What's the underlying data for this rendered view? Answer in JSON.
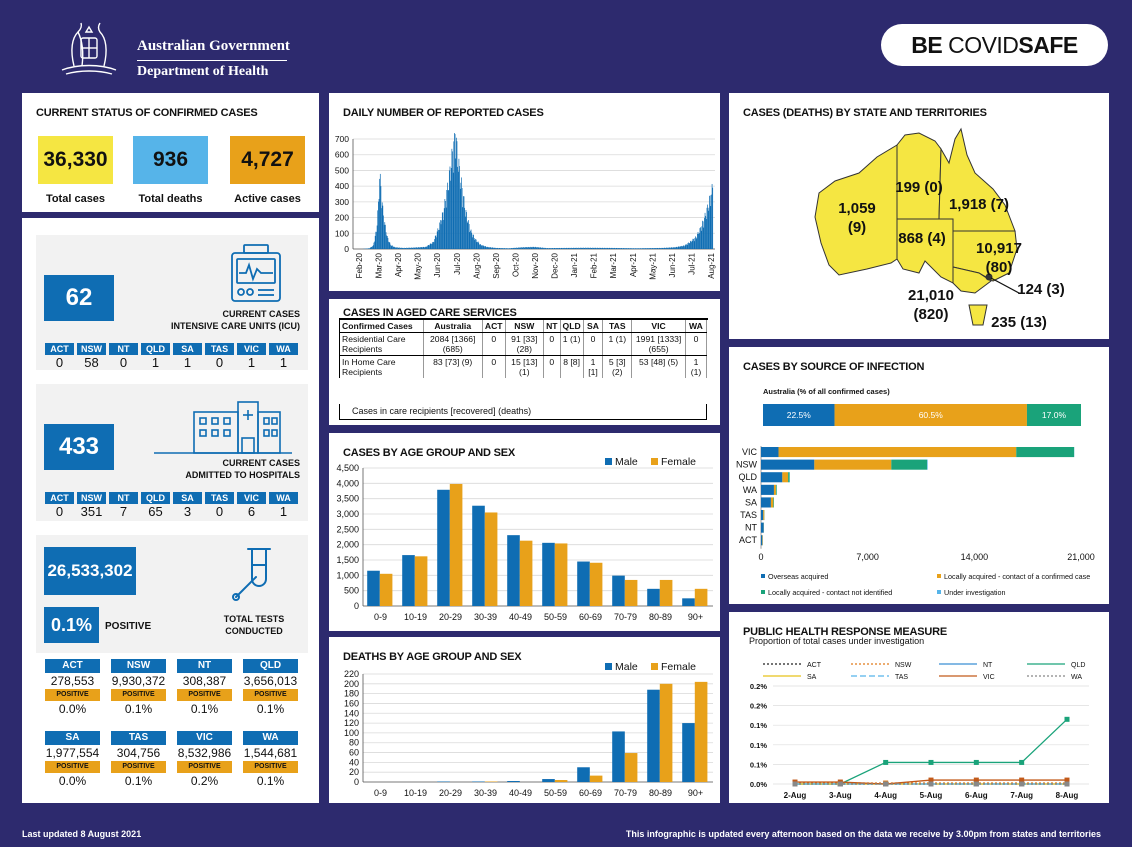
{
  "header": {
    "gov_line1": "Australian Government",
    "gov_line2": "Department of Health",
    "brand_be": "BE ",
    "brand_covid": "COVID",
    "brand_safe": "SAFE"
  },
  "status": {
    "title": "CURRENT STATUS OF CONFIRMED CASES",
    "total_cases": "36,330",
    "total_cases_label": "Total cases",
    "total_deaths": "936",
    "total_deaths_label": "Total deaths",
    "active_cases": "4,727",
    "active_cases_label": "Active cases",
    "colors": {
      "cases": "#f5e642",
      "deaths": "#56b4e9",
      "active": "#e8a11a"
    }
  },
  "icu": {
    "value": "62",
    "label1": "CURRENT CASES",
    "label2": "INTENSIVE CARE UNITS (ICU)",
    "states": [
      {
        "s": "ACT",
        "v": "0"
      },
      {
        "s": "NSW",
        "v": "58"
      },
      {
        "s": "NT",
        "v": "0"
      },
      {
        "s": "QLD",
        "v": "1"
      },
      {
        "s": "SA",
        "v": "1"
      },
      {
        "s": "TAS",
        "v": "0"
      },
      {
        "s": "VIC",
        "v": "1"
      },
      {
        "s": "WA",
        "v": "1"
      }
    ]
  },
  "hospital": {
    "value": "433",
    "label1": "CURRENT CASES",
    "label2": "ADMITTED TO HOSPITALS",
    "states": [
      {
        "s": "ACT",
        "v": "0"
      },
      {
        "s": "NSW",
        "v": "351"
      },
      {
        "s": "NT",
        "v": "7"
      },
      {
        "s": "QLD",
        "v": "65"
      },
      {
        "s": "SA",
        "v": "3"
      },
      {
        "s": "TAS",
        "v": "0"
      },
      {
        "s": "VIC",
        "v": "6"
      },
      {
        "s": "WA",
        "v": "1"
      }
    ]
  },
  "tests": {
    "value": "26,533,302",
    "positive_value": "0.1%",
    "positive_label": "POSITIVE",
    "label1": "TOTAL TESTS",
    "label2": "CONDUCTED",
    "states": [
      {
        "s": "ACT",
        "v": "278,553",
        "p": "POSITIVE",
        "pv": "0.0%"
      },
      {
        "s": "NSW",
        "v": "9,930,372",
        "p": "POSITIVE",
        "pv": "0.1%"
      },
      {
        "s": "NT",
        "v": "308,387",
        "p": "POSITIVE",
        "pv": "0.1%"
      },
      {
        "s": "QLD",
        "v": "3,656,013",
        "p": "POSITIVE",
        "pv": "0.1%"
      },
      {
        "s": "SA",
        "v": "1,977,554",
        "p": "POSITIVE",
        "pv": "0.0%"
      },
      {
        "s": "TAS",
        "v": "304,756",
        "p": "POSITIVE",
        "pv": "0.1%"
      },
      {
        "s": "VIC",
        "v": "8,532,986",
        "p": "POSITIVE",
        "pv": "0.2%"
      },
      {
        "s": "WA",
        "v": "1,544,681",
        "p": "POSITIVE",
        "pv": "0.1%"
      }
    ]
  },
  "aged_care": {
    "title": "CASES IN AGED CARE SERVICES",
    "headers": [
      "Confirmed Cases",
      "Australia",
      "ACT",
      "NSW",
      "NT",
      "QLD",
      "SA",
      "TAS",
      "VIC",
      "WA"
    ],
    "rows": [
      [
        "Residential Care Recipients",
        "2084 [1366] (685)",
        "0",
        "91 [33] (28)",
        "0",
        "1 (1)",
        "0",
        "1 (1)",
        "1991 [1333] (655)",
        "0"
      ],
      [
        "In Home Care Recipients",
        "83 [73] (9)",
        "0",
        "15 [13] (1)",
        "0",
        "8 [8]",
        "1 [1]",
        "5 [3] (2)",
        "53 [48] (5)",
        "1 (1)"
      ]
    ],
    "note": "Cases in care recipients [recovered] (deaths)"
  },
  "map": {
    "title": "CASES (DEATHS) BY STATE AND TERRITORIES",
    "labels": {
      "wa1": "1,059",
      "wa2": "(9)",
      "nt": "199 (0)",
      "qld": "1,918 (7)",
      "sa": "868 (4)",
      "nsw1": "10,917",
      "nsw2": "(80)",
      "act": "124 (3)",
      "vic1": "21,010",
      "vic2": "(820)",
      "tas": "235 (13)"
    },
    "fill": "#f5e642"
  },
  "footer": {
    "updated": "Last updated 8 August 2021",
    "note": "This infographic is updated every afternoon based on the data we receive by 3.00pm from states and territories"
  },
  "chart_data": [
    {
      "id": "daily",
      "type": "bar",
      "title": "DAILY NUMBER OF REPORTED CASES",
      "ylim": [
        0,
        700
      ],
      "yticks": [
        0,
        100,
        200,
        300,
        400,
        500,
        600,
        700
      ],
      "xticks": [
        "Feb-20",
        "Mar-20",
        "Apr-20",
        "May-20",
        "Jun-20",
        "Jul-20",
        "Aug-20",
        "Sep-20",
        "Oct-20",
        "Nov-20",
        "Dec-20",
        "Jan-21",
        "Feb-21",
        "Mar-21",
        "Apr-21",
        "May-21",
        "Jun-21",
        "Jul-21",
        "Aug-21"
      ],
      "points": [
        [
          0,
          0
        ],
        [
          10,
          0
        ],
        [
          22,
          4
        ],
        [
          28,
          20
        ],
        [
          33,
          110
        ],
        [
          36,
          260
        ],
        [
          38,
          440
        ],
        [
          40,
          360
        ],
        [
          43,
          230
        ],
        [
          46,
          150
        ],
        [
          50,
          70
        ],
        [
          55,
          25
        ],
        [
          62,
          10
        ],
        [
          75,
          6
        ],
        [
          90,
          8
        ],
        [
          110,
          12
        ],
        [
          122,
          40
        ],
        [
          130,
          120
        ],
        [
          138,
          220
        ],
        [
          146,
          400
        ],
        [
          152,
          560
        ],
        [
          156,
          700
        ],
        [
          160,
          540
        ],
        [
          166,
          380
        ],
        [
          172,
          230
        ],
        [
          180,
          110
        ],
        [
          188,
          55
        ],
        [
          196,
          25
        ],
        [
          206,
          12
        ],
        [
          220,
          6
        ],
        [
          240,
          4
        ],
        [
          262,
          10
        ],
        [
          280,
          12
        ],
        [
          300,
          5
        ],
        [
          330,
          6
        ],
        [
          360,
          7
        ],
        [
          400,
          6
        ],
        [
          440,
          4
        ],
        [
          480,
          6
        ],
        [
          500,
          10
        ],
        [
          515,
          20
        ],
        [
          525,
          45
        ],
        [
          533,
          70
        ],
        [
          540,
          120
        ],
        [
          546,
          180
        ],
        [
          551,
          240
        ],
        [
          555,
          300
        ],
        [
          559,
          360
        ]
      ],
      "x_max": 560,
      "color": "#0f6db3"
    },
    {
      "id": "age_cases",
      "type": "bar",
      "title": "CASES BY AGE GROUP AND SEX",
      "categories": [
        "0-9",
        "10-19",
        "20-29",
        "30-39",
        "40-49",
        "50-59",
        "60-69",
        "70-79",
        "80-89",
        "90+"
      ],
      "series": [
        {
          "name": "Male",
          "color": "#0f6db3",
          "values": [
            1150,
            1660,
            3790,
            3270,
            2310,
            2060,
            1450,
            990,
            560,
            250
          ]
        },
        {
          "name": "Female",
          "color": "#e8a11a",
          "values": [
            1050,
            1620,
            3980,
            3050,
            2130,
            2040,
            1410,
            850,
            850,
            560
          ]
        }
      ],
      "ylim": [
        0,
        4500
      ],
      "yticks": [
        0,
        500,
        1000,
        1500,
        2000,
        2500,
        3000,
        3500,
        4000,
        4500
      ],
      "ytick_labels": [
        "0",
        "500",
        "1,000",
        "1,500",
        "2,000",
        "2,500",
        "3,000",
        "3,500",
        "4,000",
        "4,500"
      ]
    },
    {
      "id": "age_deaths",
      "type": "bar",
      "title": "DEATHS BY AGE GROUP AND SEX",
      "categories": [
        "0-9",
        "10-19",
        "20-29",
        "30-39",
        "40-49",
        "50-59",
        "60-69",
        "70-79",
        "80-89",
        "90+"
      ],
      "series": [
        {
          "name": "Male",
          "color": "#0f6db3",
          "values": [
            0,
            0,
            1,
            1,
            2,
            6,
            30,
            103,
            188,
            120
          ]
        },
        {
          "name": "Female",
          "color": "#e8a11a",
          "values": [
            0,
            0,
            0,
            1,
            0,
            4,
            13,
            59,
            200,
            204
          ]
        }
      ],
      "ylim": [
        0,
        220
      ],
      "yticks": [
        0,
        20,
        40,
        60,
        80,
        100,
        120,
        140,
        160,
        180,
        200,
        220
      ]
    },
    {
      "id": "source",
      "type": "bar",
      "title": "CASES BY SOURCE OF INFECTION",
      "subtitle": "Australia (% of all confirmed cases)",
      "aus_segments": [
        {
          "name": "Overseas acquired",
          "pct": 22.5,
          "label": "22.5%",
          "color": "#0f6db3"
        },
        {
          "name": "Locally acquired - contact of a confirmed case",
          "pct": 60.5,
          "label": "60.5%",
          "color": "#e8a11a"
        },
        {
          "name": "Locally acquired - contact not identified",
          "pct": 17.0,
          "label": "17.0%",
          "color": "#1aa37a"
        }
      ],
      "categories": [
        "VIC",
        "NSW",
        "QLD",
        "WA",
        "SA",
        "TAS",
        "NT",
        "ACT"
      ],
      "series": [
        {
          "name": "Overseas acquired",
          "color": "#0f6db3",
          "values": [
            1150,
            3500,
            1400,
            850,
            650,
            150,
            180,
            90
          ]
        },
        {
          "name": "Locally acquired - contact of a confirmed case",
          "color": "#e8a11a",
          "values": [
            15600,
            5050,
            380,
            130,
            160,
            70,
            10,
            30
          ]
        },
        {
          "name": "Locally acquired - contact not identified",
          "color": "#1aa37a",
          "values": [
            3800,
            2350,
            100,
            50,
            40,
            10,
            5,
            4
          ]
        },
        {
          "name": "Under investigation",
          "color": "#56b4e9",
          "values": [
            10,
            40,
            5,
            0,
            0,
            0,
            0,
            0
          ]
        }
      ],
      "xlim": [
        0,
        21000
      ],
      "xticks": [
        0,
        7000,
        14000,
        21000
      ],
      "xtick_labels": [
        "0",
        "7,000",
        "14,000",
        "21,000"
      ]
    },
    {
      "id": "phrm",
      "type": "line",
      "title": "PUBLIC HEALTH RESPONSE MEASURE",
      "subtitle": "Proportion of total cases under investigation",
      "x": [
        "2-Aug",
        "3-Aug",
        "4-Aug",
        "5-Aug",
        "6-Aug",
        "7-Aug",
        "8-Aug"
      ],
      "ylim": [
        0,
        5
      ],
      "yticks": [
        0,
        1,
        2,
        3,
        4,
        5
      ],
      "ytick_labels": [
        "0.0%",
        "0.1%",
        "0.1%",
        "0.1%",
        "0.2%",
        "0.2%"
      ],
      "series": [
        {
          "name": "ACT",
          "color": "#222222",
          "dash": "2,2",
          "values": [
            0,
            0,
            0,
            0,
            0,
            0,
            0
          ]
        },
        {
          "name": "NSW",
          "color": "#e07b1a",
          "dash": "2,2",
          "values": [
            0.05,
            0.05,
            0.05,
            0.05,
            0.05,
            0.05,
            0.05
          ]
        },
        {
          "name": "NT",
          "color": "#3a8fd4",
          "dash": "",
          "values": [
            0,
            0,
            0,
            0,
            0,
            0,
            0
          ]
        },
        {
          "name": "QLD",
          "color": "#1aa37a",
          "dash": "",
          "values": [
            0,
            0,
            1.1,
            1.1,
            1.1,
            1.1,
            3.3
          ]
        },
        {
          "name": "SA",
          "color": "#e8c21a",
          "dash": "",
          "values": [
            0,
            0,
            0,
            0,
            0,
            0,
            0
          ]
        },
        {
          "name": "TAS",
          "color": "#56b4e9",
          "dash": "6,3",
          "values": [
            0,
            0,
            0,
            0,
            0,
            0,
            0
          ]
        },
        {
          "name": "VIC",
          "color": "#c25a1a",
          "dash": "",
          "values": [
            0.1,
            0.1,
            0,
            0.2,
            0.2,
            0.2,
            0.2
          ]
        },
        {
          "name": "WA",
          "color": "#888888",
          "dash": "2,2",
          "values": [
            0,
            0,
            0,
            0,
            0,
            0,
            0
          ]
        }
      ]
    }
  ]
}
